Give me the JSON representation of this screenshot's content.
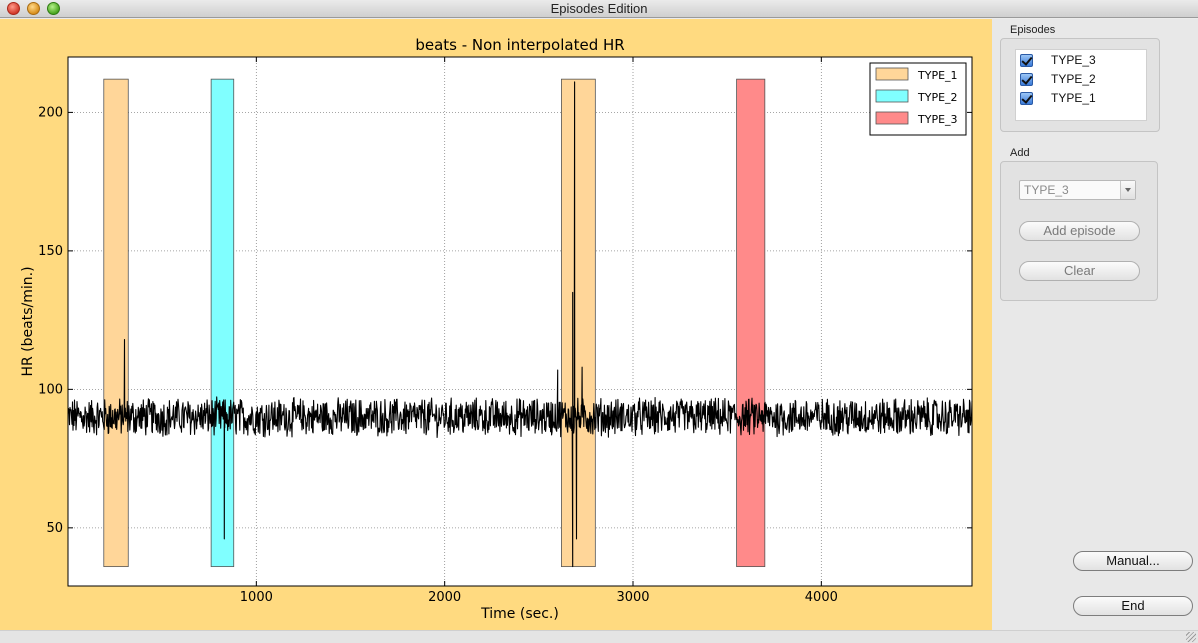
{
  "window": {
    "title": "Episodes Edition"
  },
  "side_panel": {
    "episodes_label": "Episodes",
    "episodes": [
      {
        "label": "TYPE_3",
        "checked": true
      },
      {
        "label": "TYPE_2",
        "checked": true
      },
      {
        "label": "TYPE_1",
        "checked": true
      }
    ],
    "add_label": "Add",
    "add_select_value": "TYPE_3",
    "add_episode_button": "Add episode",
    "clear_button": "Clear",
    "manual_button": "Manual...",
    "end_button": "End"
  },
  "chart_data": {
    "type": "line",
    "title": "beats - Non interpolated HR",
    "xlabel": "Time (sec.)",
    "ylabel": "HR (beats/min.)",
    "xlim": [
      0,
      4800
    ],
    "ylim": [
      29,
      220
    ],
    "xticks": [
      1000,
      2000,
      3000,
      4000
    ],
    "yticks": [
      50,
      100,
      150,
      200
    ],
    "grid": true,
    "legend_position": "top-right",
    "background_color": "#ffda80",
    "series": [
      {
        "name": "",
        "color": "#000000",
        "baseline": 90,
        "noise_amplitude": 6,
        "spikes": [
          {
            "x": 300,
            "y": 118
          },
          {
            "x": 830,
            "y": 46
          },
          {
            "x": 2600,
            "y": 107
          },
          {
            "x": 2690,
            "y": 211
          },
          {
            "x": 2680,
            "y": 135
          },
          {
            "x": 2680,
            "y": 36
          },
          {
            "x": 2700,
            "y": 46
          },
          {
            "x": 2730,
            "y": 108
          }
        ]
      }
    ],
    "episodes": [
      {
        "type": "TYPE_1",
        "start": 190,
        "end": 320,
        "color": "#ffd699"
      },
      {
        "type": "TYPE_2",
        "start": 760,
        "end": 880,
        "color": "#80ffff"
      },
      {
        "type": "TYPE_1",
        "start": 2620,
        "end": 2800,
        "color": "#ffd699"
      },
      {
        "type": "TYPE_3",
        "start": 3550,
        "end": 3700,
        "color": "#ff8a8a"
      }
    ],
    "episode_y_range": [
      36,
      212
    ],
    "legend": [
      {
        "label": "TYPE_1",
        "color": "#ffd699"
      },
      {
        "label": "TYPE_2",
        "color": "#80ffff"
      },
      {
        "label": "TYPE_3",
        "color": "#ff8a8a"
      }
    ]
  }
}
